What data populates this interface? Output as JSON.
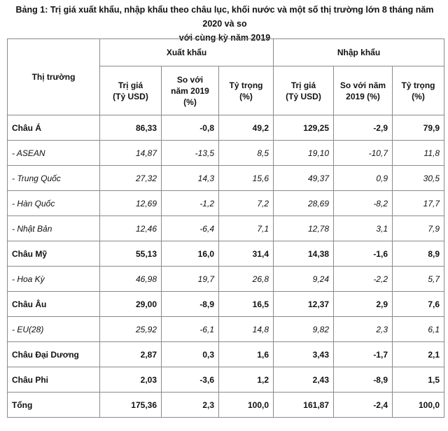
{
  "caption": {
    "line1": "Bảng 1: Trị giá xuất khẩu, nhập khẩu theo châu lục, khối nước và một số thị trường lớn 8 tháng năm 2020 và so",
    "line2": "với cùng kỳ năm 2019"
  },
  "table": {
    "market_header": "Thị trường",
    "export_header": "Xuất khẩu",
    "import_header": "Nhập khẩu",
    "columns": {
      "value": [
        "Trị giá",
        "(Tỷ USD)"
      ],
      "compare": [
        "So với",
        "năm 2019",
        "(%)"
      ],
      "share": [
        "Tỷ trọng",
        "(%)"
      ]
    },
    "import_columns": {
      "value": [
        "Trị giá",
        "(Tỷ USD)"
      ],
      "compare": [
        "So với năm",
        "2019 (%)"
      ],
      "share": [
        "Tỷ trọng",
        "(%)"
      ]
    },
    "rows": [
      {
        "name": "Châu Á",
        "type": "main",
        "exp_value": "86,33",
        "exp_change": "-0,8",
        "exp_share": "49,2",
        "imp_value": "129,25",
        "imp_change": "-2,9",
        "imp_share": "79,9"
      },
      {
        "name": "- ASEAN",
        "type": "sub",
        "exp_value": "14,87",
        "exp_change": "-13,5",
        "exp_share": "8,5",
        "imp_value": "19,10",
        "imp_change": "-10,7",
        "imp_share": "11,8"
      },
      {
        "name": "- Trung Quốc",
        "type": "sub",
        "exp_value": "27,32",
        "exp_change": "14,3",
        "exp_share": "15,6",
        "imp_value": "49,37",
        "imp_change": "0,9",
        "imp_share": "30,5"
      },
      {
        "name": "- Hàn Quốc",
        "type": "sub",
        "exp_value": "12,69",
        "exp_change": "-1,2",
        "exp_share": "7,2",
        "imp_value": "28,69",
        "imp_change": "-8,2",
        "imp_share": "17,7"
      },
      {
        "name": "- Nhật Bản",
        "type": "sub",
        "exp_value": "12,46",
        "exp_change": "-6,4",
        "exp_share": "7,1",
        "imp_value": "12,78",
        "imp_change": "3,1",
        "imp_share": "7,9"
      },
      {
        "name": "Châu Mỹ",
        "type": "main",
        "exp_value": "55,13",
        "exp_change": "16,0",
        "exp_share": "31,4",
        "imp_value": "14,38",
        "imp_change": "-1,6",
        "imp_share": "8,9"
      },
      {
        "name": "- Hoa Kỳ",
        "type": "sub",
        "exp_value": "46,98",
        "exp_change": "19,7",
        "exp_share": "26,8",
        "imp_value": "9,24",
        "imp_change": "-2,2",
        "imp_share": "5,7"
      },
      {
        "name": "Châu Âu",
        "type": "main",
        "exp_value": "29,00",
        "exp_change": "-8,9",
        "exp_share": "16,5",
        "imp_value": "12,37",
        "imp_change": "2,9",
        "imp_share": "7,6"
      },
      {
        "name": "- EU(28)",
        "type": "sub",
        "exp_value": "25,92",
        "exp_change": "-6,1",
        "exp_share": "14,8",
        "imp_value": "9,82",
        "imp_change": "2,3",
        "imp_share": "6,1"
      },
      {
        "name": "Châu Đại Dương",
        "type": "main",
        "exp_value": "2,87",
        "exp_change": "0,3",
        "exp_share": "1,6",
        "imp_value": "3,43",
        "imp_change": "-1,7",
        "imp_share": "2,1"
      },
      {
        "name": "Châu Phi",
        "type": "main",
        "exp_value": "2,03",
        "exp_change": "-3,6",
        "exp_share": "1,2",
        "imp_value": "2,43",
        "imp_change": "-8,9",
        "imp_share": "1,5"
      },
      {
        "name": "Tổng",
        "type": "main",
        "exp_value": "175,36",
        "exp_change": "2,3",
        "exp_share": "100,0",
        "imp_value": "161,87",
        "imp_change": "-2,4",
        "imp_share": "100,0"
      }
    ]
  }
}
